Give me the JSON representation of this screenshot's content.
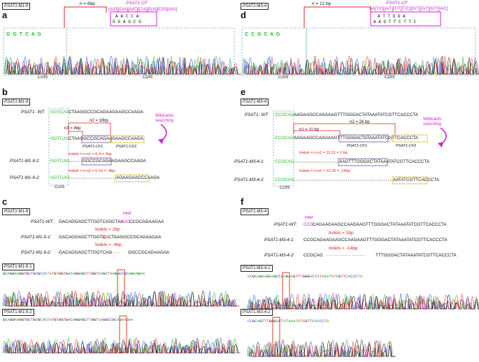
{
  "panels": {
    "a": {
      "label": "a",
      "tag_prefix": "PSAT1",
      "tag_suffix": "-M1-9",
      "n_label": "n = 6bp",
      "cf_label": "PSAT1-CF",
      "cf_pattern": "[A/G][G/A][A/C][C/A][G/A][C/G][A/G]",
      "box_top": "A  A  C  C  A",
      "box_bottom": "G  G  A  G  C  G",
      "left_seq": "G G T C A G",
      "cuis": "CUIS",
      "cdis": "CDIS"
    },
    "d": {
      "label": "d",
      "tag_prefix": "PSAT1",
      "tag_suffix": "-M3-4",
      "n_label": "n = 12 bp",
      "cf_label": "PSAT1-CF",
      "cf_pattern": "AA[T/G][A/T][T/T][T/C][G/T][G/T][G/T][A/C]",
      "box_top": "A  T     T     G  G  A",
      "box_bottom": "A  A  G  T  T  C  T  T  C",
      "left_seq": "C C G C A G",
      "cuis": "CUIS",
      "cdis": "CDIS"
    },
    "b": {
      "label": "b",
      "tag_prefix": "PSAT1",
      "tag_suffix": "-M1-9",
      "wt_name": "PSAT1- WT:",
      "wt_green": "GGTCAG",
      "wt_rest": "CTAAGGCCGCAGAAGAAGCCAAGA",
      "n2": "n2 = 10bp",
      "n1": "n1 = 4bp",
      "mid_green": "GGTCAG",
      "mid_rest": "CTAAGGCCGCAGAAGAAGCCAAGA",
      "cf1": "PSAT1-CF1",
      "cf2": "PSAT1-CF2",
      "wildcards": "Wildcards searching",
      "indel1": "Indels = n-n1 = 6-4 = 2bp",
      "r1_name": "PSAT1-M1-9-1:",
      "r1_green": "GGTCAG",
      "r1_rest": "GGCCGCAGAAGAAGCCAAGA",
      "indel2": "Indels = n-n2 = 6-10 = -4bp",
      "r2_name": "PSAT1-M1-9-2:",
      "r2_green": "GGTCAG",
      "r2_rest": "AGAAGAAGCCAAGA",
      "cuis": "CUIS"
    },
    "e": {
      "label": "e",
      "tag_prefix": "PSAT1",
      "tag_suffix": "-M3-4",
      "wt_name": "PSAT1- WT:",
      "wt_green": "CCGCAG",
      "wt_rest": "AAGAAGCCAAGAAGTTTGGGACTATAAATATCGTTCACCCTA",
      "n2": "n2 = 26 bp",
      "n1": "n1 = 11 bp",
      "mid_green": "CCGCAG",
      "mid_rest": "AAGAAGCCAAGAAGTTTGGGACTATAAATATCGTTCACCCTA",
      "cf1": "PSAT1-CF1",
      "cf2": "PSAT1-CF2",
      "wildcards": "Wildcards searching",
      "indel1": "Indels = n-n1 = 12-11 = 1 bp",
      "r1_name": "PSAT1-M3-4-1:",
      "r1_green": "CCGCAG",
      "r1_rest": "AAGTTTGGGACTATAAATATCGTTCACCCTA",
      "indel2": "Indels = n-n2 = 12-26 = -14bp",
      "r2_name": "PSAT1-M3-4-2:",
      "r2_green": "CCGCAG",
      "r2_rest": "AATATCGTTCACCCTA",
      "cuis": "CUIS"
    },
    "c": {
      "label": "c",
      "tag_prefix": "PSAT1",
      "tag_suffix": "-M1-9",
      "pam": "PAM",
      "wt_name": "PSAT1-WT:",
      "wt_a": "GACAGGAGCTTGGTCAGCTAA",
      "wt_pam": "AGG",
      "wt_b": "CCGCAGAAGAA",
      "indel1": "Indels = 2bp",
      "r1_name": "PSAT1-M1-9-1:",
      "r1_a": "GACAGGAGCTTGGTC",
      "r1_red": "AG",
      "r1_b": "CTAAGGCCGCAGAAGAA",
      "indel2": "Indels = -4bp",
      "r2_name": "PSAT1-M1-9-2:",
      "r2_a": "GACAGGAGCTTGGTCAG",
      "r2_dash": "- - - -",
      "r2_b": "GGCCGCAGAAGAA",
      "chrom1_tag": "PSAT1-M1-9-1",
      "chrom1_seq": "GCAGGAAGGTGCTGCGCACTATGTGGTGACAGGAGCTTGGTCAGCTAAGGCCGCAGAAGAA",
      "chrom2_tag": "PSAT1-M1-9-2",
      "chrom2_seq": "GCAGGAAGGTGCTGCGCACTATGTGGTGACAGGAGCTTGGTCAGGCCGCAGAAGAA"
    },
    "f": {
      "label": "f",
      "tag_prefix": "PSAT1",
      "tag_suffix": "-M3-4",
      "pam": "PAM",
      "wt_name": "PSAT1-WT:",
      "wt_pam": "CCG",
      "wt_b": "CAGAAGAAGCCAAGAAGTTTGGGACTATAAATATCGTTCACCCTA",
      "indel1": "Indels = 1bp",
      "r1_name": "PSAT1-M3-4-1:",
      "r1_a": "CCGCAGAAGAAGCCAAGAAGTTTGGGACTATAAATATCGTTCACCCTA",
      "indel2": "Indels = -14bp",
      "r2_name": "PSAT1-M3-4-2:",
      "r2_a": "CCGCAG",
      "r2_dash": "- - - - - - - - - - - - - -",
      "r2_b": "TTTGGGACTATAAATATCGTTCACCCTA",
      "chrom1_tag": "PSAT1-M3-4-1",
      "chrom1_seq": "CCGCAGAAGAAGCCAAGAAGTTTGGGACTATAAATATCGTTCACCCTA",
      "chrom2_tag": "PSAT1-M3-4-2",
      "chrom2_seq": "CCGCAGTTTGGGACTATAAATATCGTTCACCCTA"
    }
  },
  "colors": {
    "A": "#22aa22",
    "C": "#2244ee",
    "G": "#111111",
    "T": "#e02020",
    "magenta": "#cc22cc",
    "green_label": "#22bb22",
    "highlight_box": "#e0c040",
    "cuis_box": "#66aacc"
  }
}
